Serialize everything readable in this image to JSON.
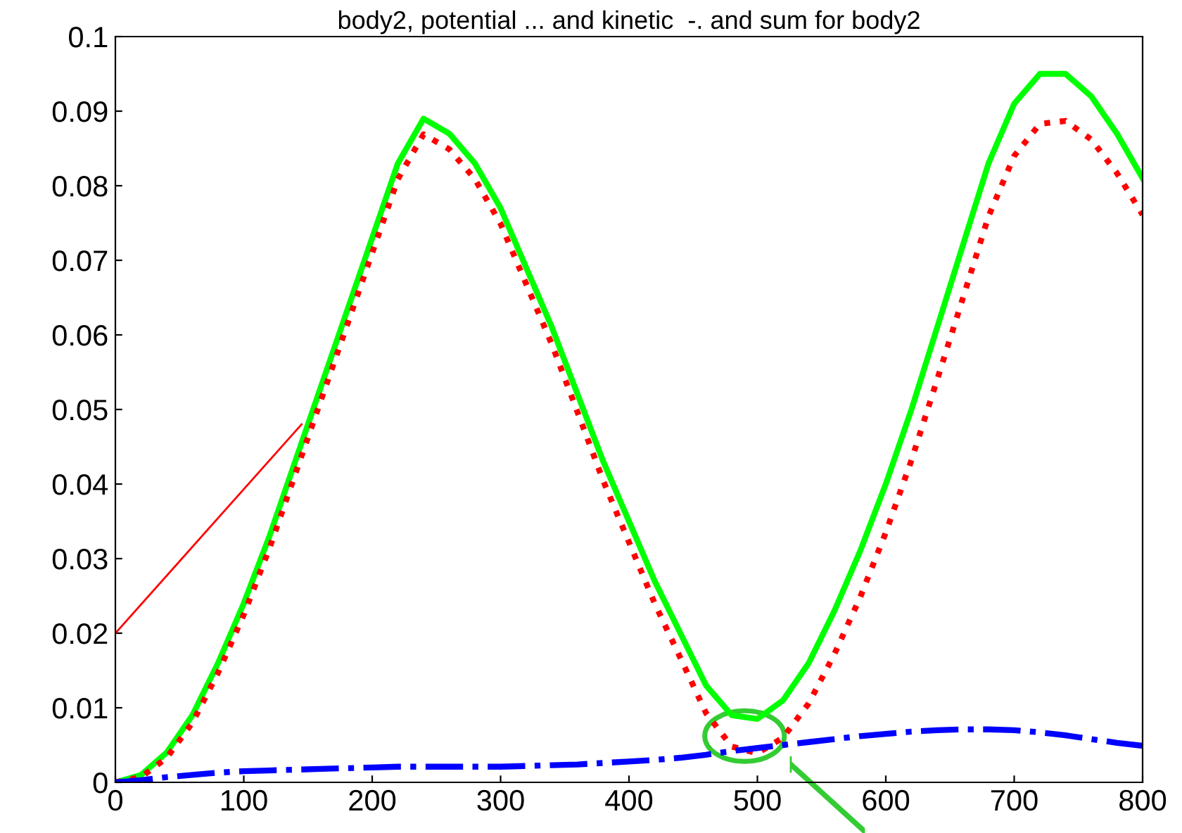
{
  "chart_data": {
    "type": "line",
    "title": "body2, potential ... and kinetic  -. and sum for body2",
    "x": [
      0,
      20,
      40,
      60,
      80,
      100,
      120,
      140,
      160,
      180,
      200,
      220,
      240,
      260,
      280,
      300,
      320,
      340,
      360,
      380,
      400,
      420,
      440,
      460,
      480,
      500,
      520,
      540,
      560,
      580,
      600,
      620,
      640,
      660,
      680,
      700,
      720,
      740,
      760,
      780,
      800
    ],
    "series": [
      {
        "color": "#00ff00",
        "line_style": "solid",
        "values": [
          0,
          0.001,
          0.004,
          0.009,
          0.016,
          0.024,
          0.033,
          0.043,
          0.053,
          0.063,
          0.073,
          0.083,
          0.089,
          0.087,
          0.083,
          0.077,
          0.069,
          0.061,
          0.052,
          0.043,
          0.035,
          0.027,
          0.02,
          0.013,
          0.009,
          0.0085,
          0.011,
          0.016,
          0.023,
          0.031,
          0.04,
          0.05,
          0.061,
          0.072,
          0.083,
          0.091,
          0.095,
          0.095,
          0.092,
          0.087,
          0.081
        ]
      },
      {
        "color": "#ff0000",
        "line_style": "dotted",
        "values": [
          0,
          0.0007,
          0.0033,
          0.008,
          0.0147,
          0.0225,
          0.0314,
          0.0413,
          0.0512,
          0.0611,
          0.071,
          0.0809,
          0.0869,
          0.0849,
          0.0809,
          0.0749,
          0.0668,
          0.0587,
          0.0496,
          0.0404,
          0.0322,
          0.024,
          0.0167,
          0.0093,
          0.0048,
          0.0039,
          0.006,
          0.0106,
          0.0172,
          0.0248,
          0.0335,
          0.0432,
          0.054,
          0.0649,
          0.0759,
          0.084,
          0.0883,
          0.0887,
          0.0862,
          0.0817,
          0.0761
        ]
      },
      {
        "color": "#0000ff",
        "line_style": "dashdot",
        "values": [
          0,
          0.0003,
          0.0007,
          0.001,
          0.0013,
          0.0015,
          0.0016,
          0.0017,
          0.0018,
          0.0019,
          0.002,
          0.0021,
          0.0021,
          0.0021,
          0.0021,
          0.0021,
          0.0022,
          0.0023,
          0.0024,
          0.0026,
          0.0028,
          0.003,
          0.0033,
          0.0037,
          0.0042,
          0.0046,
          0.005,
          0.0054,
          0.0058,
          0.0062,
          0.0065,
          0.0068,
          0.007,
          0.0071,
          0.0071,
          0.007,
          0.0067,
          0.0063,
          0.0058,
          0.0053,
          0.0049
        ]
      },
      {
        "type": "line",
        "color": "#ff0000",
        "line_style": "solid",
        "x": [
          0,
          145
        ],
        "values": [
          0.02,
          0.048
        ]
      }
    ],
    "xlim": [
      0,
      800
    ],
    "xticks": [
      0,
      100,
      200,
      300,
      400,
      500,
      600,
      700,
      800
    ],
    "ylim": [
      0,
      0.1
    ],
    "yticks": [
      0,
      0.01,
      0.02,
      0.03,
      0.04,
      0.05,
      0.06,
      0.07,
      0.08,
      0.09,
      0.1
    ],
    "grid": false,
    "legend": false
  }
}
